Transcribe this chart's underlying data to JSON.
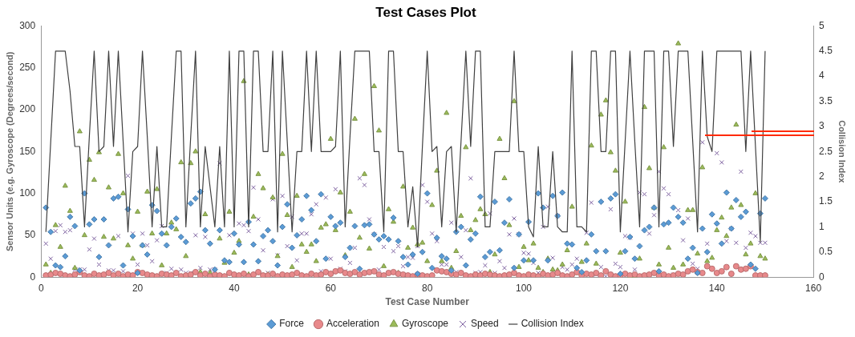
{
  "chart_data": {
    "type": "scatter",
    "title": "Test Cases Plot",
    "xlabel": "Test Case Number",
    "ylabel": "Sensor Units (e.g. Gyroscope (Degrees/second)",
    "y2label": "Collision Index",
    "x": [
      1,
      2,
      3,
      4,
      5,
      6,
      7,
      8,
      9,
      10,
      11,
      12,
      13,
      14,
      15,
      16,
      17,
      18,
      19,
      20,
      21,
      22,
      23,
      24,
      25,
      26,
      27,
      28,
      29,
      30,
      31,
      32,
      33,
      34,
      35,
      36,
      37,
      38,
      39,
      40,
      41,
      42,
      43,
      44,
      45,
      46,
      47,
      48,
      49,
      50,
      51,
      52,
      53,
      54,
      55,
      56,
      57,
      58,
      59,
      60,
      61,
      62,
      63,
      64,
      65,
      66,
      67,
      68,
      69,
      70,
      71,
      72,
      73,
      74,
      75,
      76,
      77,
      78,
      79,
      80,
      81,
      82,
      83,
      84,
      85,
      86,
      87,
      88,
      89,
      90,
      91,
      92,
      93,
      94,
      95,
      96,
      97,
      98,
      99,
      100,
      101,
      102,
      103,
      104,
      105,
      106,
      107,
      108,
      109,
      110,
      111,
      112,
      113,
      114,
      115,
      116,
      117,
      118,
      119,
      120,
      121,
      122,
      123,
      124,
      125,
      126,
      127,
      128,
      129,
      130,
      131,
      132,
      133,
      134,
      135,
      136,
      137,
      138,
      139,
      140,
      141,
      142,
      143,
      144,
      145,
      146,
      147,
      148,
      149,
      150
    ],
    "xlim": [
      0,
      160
    ],
    "xticks": [
      0,
      20,
      40,
      60,
      80,
      100,
      120,
      140,
      160
    ],
    "ylim": [
      0,
      300
    ],
    "yticks": [
      0,
      50,
      100,
      150,
      200,
      250,
      300
    ],
    "y2lim": [
      0,
      5
    ],
    "y2ticks": [
      0,
      0.5,
      1,
      1.5,
      2,
      2.5,
      3,
      3.5,
      4,
      4.5,
      5
    ],
    "legend": "bottom",
    "series": [
      {
        "name": "Force",
        "color": "#5b9bd5",
        "marker": "diamond",
        "values": [
          83,
          54,
          14,
          12,
          25,
          72,
          61,
          8,
          100,
          63,
          69,
          24,
          69,
          38,
          94,
          96,
          14,
          81,
          49,
          5,
          38,
          27,
          86,
          79,
          52,
          38,
          60,
          70,
          48,
          42,
          88,
          94,
          102,
          56,
          40,
          9,
          56,
          20,
          18,
          52,
          39,
          18,
          66,
          39,
          19,
          49,
          56,
          43,
          14,
          60,
          87,
          35,
          50,
          69,
          97,
          80,
          43,
          99,
          22,
          72,
          61,
          65,
          24,
          35,
          61,
          10,
          62,
          63,
          51,
          45,
          49,
          45,
          71,
          43,
          24,
          15,
          27,
          4,
          30,
          100,
          11,
          47,
          25,
          22,
          8,
          54,
          60,
          14,
          45,
          52,
          96,
          24,
          30,
          90,
          32,
          65,
          93,
          11,
          51,
          20,
          66,
          20,
          100,
          83,
          20,
          97,
          73,
          101,
          40,
          39,
          11,
          6,
          20,
          51,
          31,
          90,
          31,
          94,
          99,
          4,
          31,
          48,
          22,
          37,
          56,
          60,
          83,
          7,
          63,
          65,
          83,
          72,
          65,
          22,
          35,
          5,
          58,
          30,
          75,
          64,
          40,
          101,
          58,
          92,
          72,
          78,
          15,
          10,
          76,
          94
        ]
      },
      {
        "name": "Acceleration",
        "color": "#e8898b",
        "marker": "circle",
        "values": [
          2,
          3,
          5,
          4,
          2,
          1,
          3,
          6,
          2,
          1,
          4,
          2,
          3,
          5,
          2,
          4,
          1,
          3,
          2,
          6,
          5,
          3,
          2,
          1,
          4,
          3,
          2,
          5,
          1,
          2,
          3,
          6,
          2,
          4,
          1,
          3,
          2,
          1,
          5,
          3,
          2,
          4,
          1,
          3,
          6,
          2,
          2,
          4,
          1,
          3,
          2,
          3,
          5,
          2,
          1,
          4,
          2,
          3,
          6,
          4,
          7,
          8,
          5,
          4,
          6,
          3,
          5,
          6,
          7,
          3,
          2,
          5,
          6,
          4,
          3,
          2,
          1,
          3,
          2,
          1,
          2,
          8,
          7,
          6,
          4,
          3,
          5,
          2,
          1,
          3,
          2,
          4,
          3,
          2,
          1,
          2,
          3,
          5,
          2,
          1,
          3,
          2,
          1,
          4,
          2,
          3,
          5,
          2,
          1,
          3,
          6,
          2,
          4,
          3,
          5,
          2,
          7,
          3,
          1,
          2,
          4,
          2,
          3,
          1,
          2,
          3,
          5,
          2,
          3,
          1,
          2,
          4,
          3,
          7,
          9,
          6,
          5,
          13,
          10,
          5,
          7,
          12,
          4,
          13,
          9,
          10,
          13,
          2,
          2,
          2
        ]
      },
      {
        "name": "Gyroscope",
        "color": "#9bbb59",
        "marker": "triangle",
        "values": [
          15,
          5,
          62,
          36,
          109,
          79,
          11,
          174,
          50,
          140,
          116,
          149,
          48,
          107,
          46,
          147,
          100,
          38,
          22,
          78,
          38,
          102,
          52,
          105,
          14,
          52,
          65,
          57,
          137,
          25,
          136,
          150,
          6,
          75,
          5,
          null,
          46,
          17,
          78,
          29,
          43,
          234,
          3,
          72,
          123,
          106,
          3,
          95,
          25,
          147,
          74,
          12,
          97,
          39,
          30,
          39,
          19,
          59,
          63,
          165,
          56,
          101,
          26,
          78,
          189,
          47,
          123,
          34,
          228,
          175,
          13,
          81,
          66,
          5,
          108,
          35,
          59,
          39,
          41,
          19,
          86,
          127,
          19,
          196,
          11,
          31,
          73,
          155,
          56,
          68,
          81,
          75,
          6,
          27,
          165,
          118,
          62,
          210,
          12,
          36,
          20,
          40,
          11,
          6,
          22,
          9,
          8,
          15,
          32,
          84,
          5,
          18,
          40,
          157,
          16,
          194,
          211,
          149,
          127,
          29,
          90,
          1,
          1,
          22,
          203,
          130,
          83,
          15,
          155,
          35,
          11,
          279,
          15,
          80,
          80,
          28,
          131,
          19,
          23,
          56,
          71,
          49,
          83,
          182,
          86,
          27,
          40,
          100,
          25,
          22
        ]
      },
      {
        "name": "Speed",
        "color": "#8064a2",
        "marker": "cross",
        "values": [
          40,
          22,
          55,
          62,
          54,
          56,
          9,
          9,
          9,
          33,
          46,
          15,
          null,
          8,
          8,
          49,
          7,
          121,
          52,
          15,
          52,
          38,
          19,
          44,
          61,
          5,
          10,
          5,
          9,
          5,
          5,
          50,
          11,
          48,
          9,
          9,
          136,
          null,
          50,
          2,
          64,
          62,
          55,
          107,
          69,
          32,
          5,
          93,
          26,
          97,
          37,
          72,
          20,
          52,
          52,
          75,
          87,
          7,
          95,
          22,
          105,
          10,
          7,
          17,
          35,
          118,
          110,
          69,
          51,
          9,
          36,
          null,
          31,
          37,
          13,
          24,
          23,
          37,
          110,
          90,
          52,
          43,
          15,
          15,
          65,
          6,
          24,
          56,
          118,
          5,
          6,
          14,
          76,
          5,
          19,
          11,
          51,
          70,
          51,
          29,
          28,
          17,
          5,
          60,
          84,
          23,
          73,
          12,
          9,
          15,
          22,
          1,
          53,
          89,
          3,
          12,
          1,
          81,
          16,
          12,
          49,
          47,
          9,
          101,
          99,
          52,
          74,
          126,
          106,
          99,
          3,
          80,
          44,
          70,
          16,
          10,
          161,
          40,
          null,
          148,
          137,
          43,
          58,
          41,
          126,
          35,
          53,
          49,
          41,
          41
        ]
      },
      {
        "name": "Collision Index",
        "type": "line",
        "axis": "y2",
        "color": "#404040",
        "marker": "none",
        "line_style": "solid",
        "values": [
          0.9,
          2.7,
          4.5,
          4.5,
          4.5,
          3.7,
          2.6,
          2.6,
          1,
          2.8,
          4.5,
          2.5,
          2.6,
          4.5,
          2.6,
          4.5,
          2.7,
          0.9,
          2.5,
          2.6,
          4.5,
          2.8,
          1,
          2.6,
          1,
          1,
          2.8,
          4.5,
          4.5,
          1,
          2.8,
          4.5,
          1,
          2.6,
          1.8,
          1,
          2.6,
          1,
          4.5,
          1,
          4.5,
          4.5,
          1,
          4.5,
          4.5,
          2.5,
          2.5,
          4.5,
          0.9,
          4.5,
          2.7,
          0.9,
          2.5,
          2.5,
          4.5,
          2.5,
          4.5,
          2.5,
          2.5,
          2.5,
          2.6,
          4.5,
          1,
          2.8,
          4.5,
          4.5,
          4.5,
          4.5,
          2.5,
          2.5,
          0.9,
          4.5,
          4.5,
          2.5,
          2.5,
          1,
          1.8,
          0.6,
          2.6,
          4.5,
          2.5,
          2.6,
          1,
          2.5,
          2.6,
          0.9,
          2.7,
          4.5,
          2.6,
          4.5,
          4.5,
          1,
          1,
          2.5,
          2.5,
          2.5,
          2.5,
          4.5,
          2.5,
          2.5,
          1,
          0.8,
          2.6,
          1,
          1,
          2.5,
          1,
          0.9,
          0.9,
          4.5,
          1,
          1,
          0.9,
          4.5,
          4.5,
          2.5,
          2.5,
          4.5,
          4.5,
          0.9,
          2.7,
          4.5,
          2.7,
          1,
          4.5,
          4.5,
          4.5,
          1,
          4.5,
          4.5,
          2.6,
          4.5,
          4.5,
          4.5,
          2.7,
          0.9,
          4.5,
          2.8,
          2.5,
          4.5,
          4.5,
          4.5,
          4.5,
          4.5,
          4.5,
          2.5,
          4.5,
          2.6,
          0.7,
          4.5
        ]
      }
    ]
  }
}
